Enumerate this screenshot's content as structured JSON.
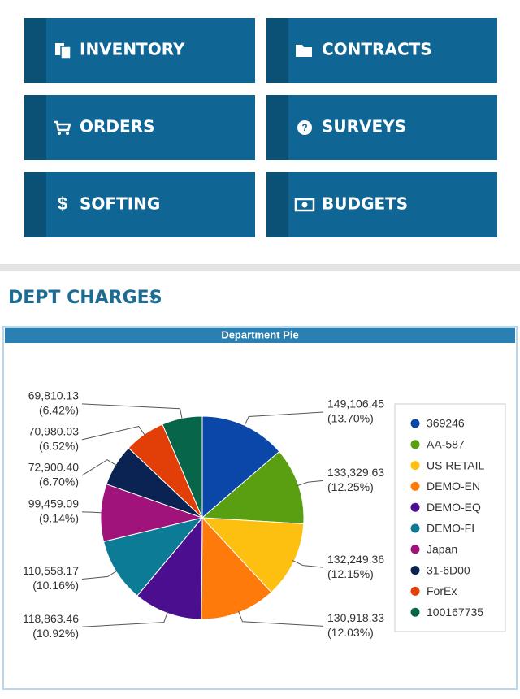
{
  "tiles": [
    {
      "label": "INVENTORY"
    },
    {
      "label": "CONTRACTS"
    },
    {
      "label": "ORDERS"
    },
    {
      "label": "SURVEYS"
    },
    {
      "label": "SOFTING"
    },
    {
      "label": "BUDGETS"
    }
  ],
  "section_title": "DEPT CHARGES",
  "chart_data": {
    "type": "pie",
    "title": "Department Pie",
    "categories": [
      "369246",
      "AA-587",
      "US RETAIL",
      "DEMO-EN",
      "DEMO-EQ",
      "DEMO-FI",
      "Japan",
      "31-6D00",
      "ForEx",
      "100167735"
    ],
    "values": [
      149106.45,
      133329.63,
      132249.36,
      130918.33,
      118863.46,
      110558.17,
      99459.09,
      72900.4,
      70980.03,
      69810.13
    ],
    "value_labels": [
      "149,106.45",
      "133,329.63",
      "132,249.36",
      "130,918.33",
      "118,863.46",
      "110,558.17",
      "99,459.09",
      "72,900.40",
      "70,980.03",
      "69,810.13"
    ],
    "percent_labels": [
      "(13.70%)",
      "(12.25%)",
      "(12.15%)",
      "(12.03%)",
      "(10.92%)",
      "(10.16%)",
      "(9.14%)",
      "(6.70%)",
      "(6.52%)",
      "(6.42%)"
    ],
    "colors": [
      "#0a47a8",
      "#5a9e12",
      "#fec010",
      "#fe7a0a",
      "#4b0e8f",
      "#0c7b96",
      "#a0137a",
      "#0b2352",
      "#e23e07",
      "#07664a"
    ],
    "legend": "right"
  }
}
